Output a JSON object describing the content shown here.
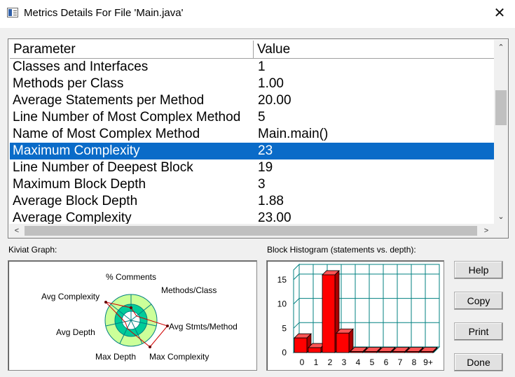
{
  "window": {
    "title": "Metrics Details For File 'Main.java'",
    "close_glyph": "✕"
  },
  "table": {
    "headers": {
      "parameter": "Parameter",
      "value": "Value"
    },
    "rows": [
      {
        "param": "Classes and Interfaces",
        "value": "1"
      },
      {
        "param": "Methods per Class",
        "value": "1.00"
      },
      {
        "param": "Average Statements per Method",
        "value": "20.00"
      },
      {
        "param": "Line Number of Most Complex Method",
        "value": "5"
      },
      {
        "param": "Name of Most Complex Method",
        "value": "Main.main()"
      },
      {
        "param": "Maximum Complexity",
        "value": "23",
        "selected": true
      },
      {
        "param": "Line Number of Deepest Block",
        "value": "19"
      },
      {
        "param": "Maximum Block Depth",
        "value": "3"
      },
      {
        "param": "Average Block Depth",
        "value": "1.88"
      },
      {
        "param": "Average Complexity",
        "value": "23.00"
      }
    ],
    "selection_color": "#0a6bc8"
  },
  "kiviat": {
    "label": "Kiviat Graph:",
    "axes": [
      "% Comments",
      "Methods/Class",
      "Avg Stmts/Method",
      "Max Complexity",
      "Max Depth",
      "Avg Depth",
      "Avg Complexity"
    ]
  },
  "histogram": {
    "label": "Block Histogram (statements vs. depth):",
    "bar_color": "#ff0000"
  },
  "buttons": {
    "help": "Help",
    "copy": "Copy",
    "print": "Print",
    "done": "Done"
  },
  "chart_data": {
    "type": "bar",
    "title": "Block Histogram (statements vs. depth):",
    "categories": [
      "0",
      "1",
      "2",
      "3",
      "4",
      "5",
      "6",
      "7",
      "8",
      "9+"
    ],
    "values": [
      3,
      1,
      16,
      4,
      0,
      0,
      0,
      0,
      0,
      0
    ],
    "ylim": [
      0,
      17
    ],
    "yticks": [
      0,
      5,
      10,
      15
    ],
    "grid": true,
    "style": "3d"
  }
}
